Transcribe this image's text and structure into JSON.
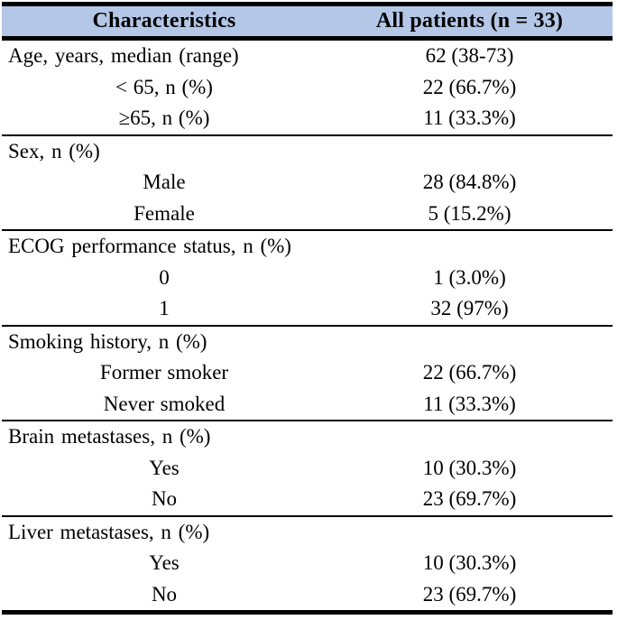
{
  "table": {
    "title": "Patient characteristics table",
    "colors": {
      "header_bg": "#b4c7e7",
      "border": "#000000",
      "text": "#000000"
    },
    "header": {
      "col1": "Characteristics",
      "col2": "All patients (n = 33)"
    },
    "sections": [
      {
        "rows": [
          {
            "label": "Age, years, median (range)",
            "value": "62 (38-73)",
            "indent": false
          },
          {
            "label": "< 65, n (%)",
            "value": "22 (66.7%)",
            "indent": true
          },
          {
            "label": "≥65, n (%)",
            "value": "11 (33.3%)",
            "indent": true
          }
        ]
      },
      {
        "rows": [
          {
            "label": "Sex, n (%)",
            "value": "",
            "indent": false
          },
          {
            "label": "Male",
            "value": "28 (84.8%)",
            "indent": true
          },
          {
            "label": "Female",
            "value": "5 (15.2%)",
            "indent": true
          }
        ]
      },
      {
        "rows": [
          {
            "label": "ECOG performance status, n (%)",
            "value": "",
            "indent": false
          },
          {
            "label": "0",
            "value": "1 (3.0%)",
            "indent": true
          },
          {
            "label": "1",
            "value": "32 (97%)",
            "indent": true
          }
        ]
      },
      {
        "rows": [
          {
            "label": "Smoking history, n (%)",
            "value": "",
            "indent": false
          },
          {
            "label": "Former smoker",
            "value": "22 (66.7%)",
            "indent": true
          },
          {
            "label": "Never smoked",
            "value": "11 (33.3%)",
            "indent": true
          }
        ]
      },
      {
        "rows": [
          {
            "label": "Brain metastases, n (%)",
            "value": "",
            "indent": false
          },
          {
            "label": "Yes",
            "value": "10 (30.3%)",
            "indent": true
          },
          {
            "label": "No",
            "value": "23 (69.7%)",
            "indent": true
          }
        ]
      },
      {
        "rows": [
          {
            "label": "Liver metastases, n (%)",
            "value": "",
            "indent": false
          },
          {
            "label": "Yes",
            "value": "10 (30.3%)",
            "indent": true
          },
          {
            "label": "No",
            "value": "23 (69.7%)",
            "indent": true
          }
        ]
      }
    ]
  }
}
